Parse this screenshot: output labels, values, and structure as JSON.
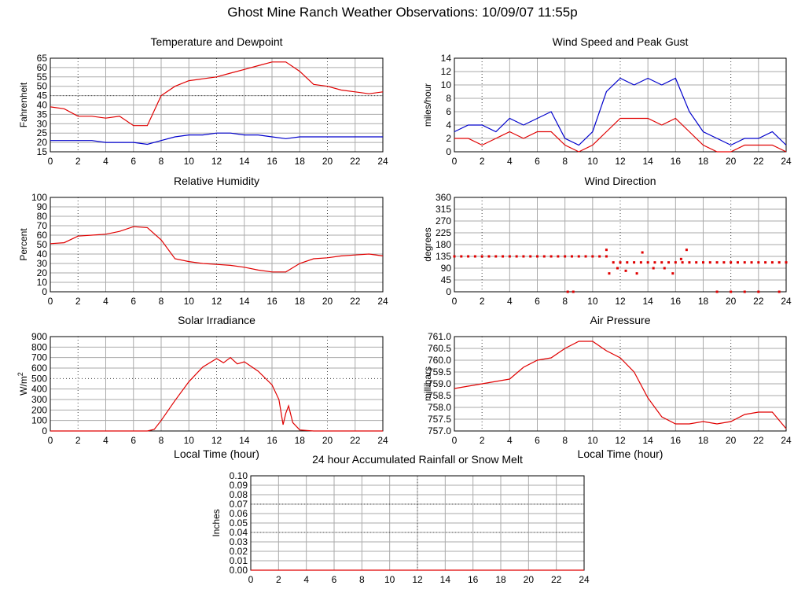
{
  "page": {
    "title": "Ghost Mine Ranch Weather Observations: 10/09/07 11:55p"
  },
  "chart_data": [
    {
      "id": "temperature",
      "type": "line",
      "title": "Temperature and Dewpoint",
      "ylabel": "Fahrenheit",
      "xlabel": "",
      "xlim": [
        0,
        24
      ],
      "ylim": [
        15,
        65
      ],
      "x_ticks": [
        0,
        2,
        4,
        6,
        8,
        10,
        12,
        14,
        16,
        18,
        20,
        22,
        24
      ],
      "y_ticks": [
        "15",
        "20",
        "25",
        "30",
        "35",
        "40",
        "45",
        "50",
        "55",
        "60",
        "65"
      ],
      "grid": true,
      "x": [
        0,
        1,
        2,
        3,
        4,
        5,
        6,
        7,
        8,
        9,
        10,
        11,
        12,
        13,
        14,
        15,
        16,
        17,
        18,
        19,
        20,
        21,
        22,
        23,
        24
      ],
      "series": [
        {
          "color": "#e00000",
          "values": [
            39,
            38,
            34,
            34,
            33,
            34,
            29,
            29,
            45,
            50,
            53,
            54,
            55,
            57,
            59,
            61,
            63,
            63,
            58,
            51,
            50,
            48,
            47,
            46,
            47
          ]
        },
        {
          "color": "#0000cc",
          "values": [
            21,
            21,
            21,
            21,
            20,
            20,
            20,
            19,
            21,
            23,
            24,
            24,
            25,
            25,
            24,
            24,
            23,
            22,
            23,
            23,
            23,
            23,
            23,
            23,
            23
          ]
        }
      ]
    },
    {
      "id": "wind-speed",
      "type": "line",
      "title": "Wind Speed and Peak Gust",
      "ylabel": "miles/hour",
      "xlabel": "",
      "xlim": [
        0,
        24
      ],
      "ylim": [
        0,
        14
      ],
      "x_ticks": [
        0,
        2,
        4,
        6,
        8,
        10,
        12,
        14,
        16,
        18,
        20,
        22,
        24
      ],
      "y_ticks": [
        "0",
        "2",
        "4",
        "6",
        "8",
        "10",
        "12",
        "14"
      ],
      "grid": true,
      "x": [
        0,
        1,
        2,
        3,
        4,
        5,
        6,
        7,
        8,
        9,
        10,
        11,
        12,
        13,
        14,
        15,
        16,
        17,
        18,
        19,
        20,
        21,
        22,
        23,
        24
      ],
      "series": [
        {
          "color": "#0000cc",
          "values": [
            3,
            4,
            4,
            3,
            5,
            4,
            5,
            6,
            2,
            1,
            3,
            9,
            11,
            10,
            11,
            10,
            11,
            6,
            3,
            2,
            1,
            2,
            2,
            3,
            1
          ]
        },
        {
          "color": "#e00000",
          "values": [
            2,
            2,
            1,
            2,
            3,
            2,
            3,
            3,
            1,
            0,
            1,
            3,
            5,
            5,
            5,
            4,
            5,
            3,
            1,
            0,
            0,
            1,
            1,
            1,
            0
          ]
        }
      ]
    },
    {
      "id": "humidity",
      "type": "line",
      "title": "Relative Humidity",
      "ylabel": "Percent",
      "xlabel": "",
      "xlim": [
        0,
        24
      ],
      "ylim": [
        0,
        100
      ],
      "x_ticks": [
        0,
        2,
        4,
        6,
        8,
        10,
        12,
        14,
        16,
        18,
        20,
        22,
        24
      ],
      "y_ticks": [
        "0",
        "10",
        "20",
        "30",
        "40",
        "50",
        "60",
        "70",
        "80",
        "90",
        "100"
      ],
      "grid": true,
      "x": [
        0,
        1,
        2,
        3,
        4,
        5,
        6,
        7,
        8,
        9,
        10,
        11,
        12,
        13,
        14,
        15,
        16,
        17,
        18,
        19,
        20,
        21,
        22,
        23,
        24
      ],
      "series": [
        {
          "color": "#e00000",
          "values": [
            51,
            52,
            59,
            60,
            61,
            64,
            69,
            68,
            55,
            35,
            32,
            30,
            29,
            28,
            26,
            23,
            21,
            21,
            30,
            35,
            36,
            38,
            39,
            40,
            38
          ]
        }
      ]
    },
    {
      "id": "wind-direction",
      "type": "scatter",
      "title": "Wind Direction",
      "ylabel": "degrees",
      "xlabel": "",
      "xlim": [
        0,
        24
      ],
      "ylim": [
        0,
        360
      ],
      "x_ticks": [
        0,
        2,
        4,
        6,
        8,
        10,
        12,
        14,
        16,
        18,
        20,
        22,
        24
      ],
      "y_ticks": [
        "0",
        "45",
        "90",
        "135",
        "180",
        "225",
        "270",
        "315",
        "360"
      ],
      "grid": true,
      "x": [
        0,
        0.5,
        1,
        1.5,
        2,
        2.5,
        3,
        3.5,
        4,
        4.5,
        5,
        5.5,
        6,
        6.5,
        7,
        7.5,
        8,
        8.5,
        9,
        9.5,
        10,
        10.5,
        11,
        11.5,
        12,
        12.5,
        13,
        13.5,
        14,
        14.5,
        15,
        15.5,
        16,
        16.5,
        17,
        17.5,
        18,
        18.5,
        19,
        19.5,
        20,
        20.5,
        21,
        21.5,
        22,
        22.5,
        23,
        23.5,
        24,
        8.2,
        8.6,
        11,
        11.2,
        11.8,
        12.4,
        13.2,
        13.6,
        14.4,
        15.2,
        15.8,
        16.4,
        16.8,
        19,
        20,
        21,
        22,
        23.5
      ],
      "series": [
        {
          "color": "#e00000",
          "values": [
            135,
            135,
            135,
            135,
            135,
            135,
            135,
            135,
            135,
            135,
            135,
            135,
            135,
            135,
            135,
            135,
            135,
            135,
            135,
            135,
            135,
            135,
            135,
            112,
            112,
            112,
            112,
            112,
            112,
            112,
            112,
            112,
            112,
            112,
            112,
            112,
            112,
            112,
            112,
            112,
            112,
            112,
            112,
            112,
            112,
            112,
            112,
            112,
            112,
            0,
            0,
            160,
            70,
            90,
            80,
            70,
            150,
            90,
            90,
            70,
            125,
            160,
            0,
            0,
            0,
            0,
            0
          ]
        }
      ]
    },
    {
      "id": "solar",
      "type": "line",
      "title": "Solar Irradiance",
      "ylabel": "W/m",
      "ylabel_sup": "2",
      "xlabel": "Local Time (hour)",
      "xlim": [
        0,
        24
      ],
      "ylim": [
        0,
        900
      ],
      "x_ticks": [
        0,
        2,
        4,
        6,
        8,
        10,
        12,
        14,
        16,
        18,
        20,
        22,
        24
      ],
      "y_ticks": [
        "0",
        "100",
        "200",
        "300",
        "400",
        "500",
        "600",
        "700",
        "800",
        "900"
      ],
      "grid": true,
      "x": [
        0,
        1,
        2,
        3,
        4,
        5,
        6,
        7,
        7.5,
        8,
        9,
        10,
        11,
        12,
        12.5,
        13,
        13.5,
        14,
        15,
        16,
        16.5,
        16.8,
        17,
        17.2,
        17.5,
        18,
        19,
        20,
        21,
        22,
        23,
        24
      ],
      "series": [
        {
          "color": "#e00000",
          "values": [
            0,
            0,
            0,
            0,
            0,
            0,
            0,
            0,
            15,
            100,
            290,
            470,
            610,
            690,
            650,
            700,
            640,
            660,
            570,
            440,
            300,
            60,
            170,
            240,
            80,
            10,
            0,
            0,
            0,
            0,
            0,
            0
          ]
        }
      ]
    },
    {
      "id": "pressure",
      "type": "line",
      "title": "Air Pressure",
      "ylabel": "millibars",
      "xlabel": "Local Time (hour)",
      "xlim": [
        0,
        24
      ],
      "ylim": [
        757.0,
        761.0
      ],
      "x_ticks": [
        0,
        2,
        4,
        6,
        8,
        10,
        12,
        14,
        16,
        18,
        20,
        22,
        24
      ],
      "y_ticks": [
        "757.0",
        "757.5",
        "758.0",
        "758.5",
        "759.0",
        "759.5",
        "760.0",
        "760.5",
        "761.0"
      ],
      "grid": true,
      "x": [
        0,
        1,
        2,
        3,
        4,
        5,
        6,
        7,
        8,
        9,
        10,
        11,
        12,
        13,
        14,
        15,
        16,
        17,
        18,
        19,
        20,
        21,
        22,
        23,
        24
      ],
      "series": [
        {
          "color": "#e00000",
          "values": [
            758.8,
            758.9,
            759.0,
            759.1,
            759.2,
            759.7,
            760.0,
            760.1,
            760.5,
            760.8,
            760.8,
            760.4,
            760.1,
            759.5,
            758.4,
            757.6,
            757.3,
            757.3,
            757.4,
            757.3,
            757.4,
            757.7,
            757.8,
            757.8,
            757.1
          ]
        }
      ]
    },
    {
      "id": "rainfall",
      "type": "line",
      "title": "24 hour Accumulated Rainfall or Snow Melt",
      "ylabel": "Inches",
      "xlabel": "",
      "xlim": [
        0,
        24
      ],
      "ylim": [
        0,
        0.1
      ],
      "x_ticks": [
        0,
        2,
        4,
        6,
        8,
        10,
        12,
        14,
        16,
        18,
        20,
        22,
        24
      ],
      "y_ticks": [
        "0.00",
        "0.01",
        "0.02",
        "0.03",
        "0.04",
        "0.05",
        "0.06",
        "0.07",
        "0.08",
        "0.09",
        "0.10"
      ],
      "grid": true,
      "x": [
        0,
        24
      ],
      "series": [
        {
          "color": "#e00000",
          "values": [
            0,
            0
          ]
        }
      ]
    }
  ]
}
